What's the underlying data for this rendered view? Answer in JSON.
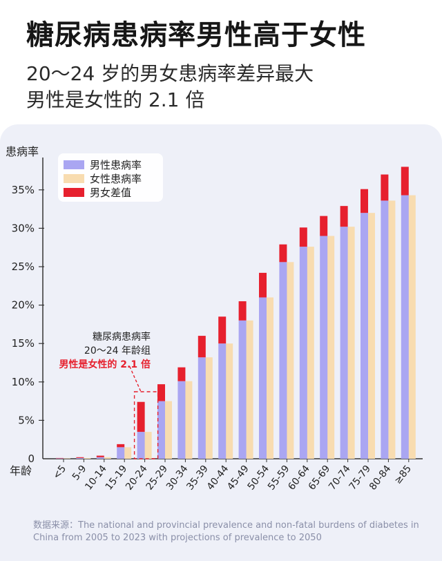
{
  "header": {
    "title": "糖尿病患病率男性高于女性",
    "subtitle_line1": "20～24 岁的男女患病率差异最大",
    "subtitle_line2": "男性是女性的 2.1 倍"
  },
  "colors": {
    "male": "#aaa6f2",
    "female": "#f8dcb0",
    "diff": "#e6202e",
    "panel": "#eef0f8",
    "annotation_red": "#e6202e"
  },
  "chart_data": {
    "type": "bar",
    "ylabel": "患病率",
    "xlabel": "年龄",
    "ylim": [
      0,
      40
    ],
    "yticks": [
      "0",
      "5%",
      "10%",
      "15%",
      "20%",
      "25%",
      "30%",
      "35%"
    ],
    "categories": [
      "<5",
      "5-9",
      "10-14",
      "15-19",
      "20-24",
      "25-29",
      "30-34",
      "35-39",
      "40-44",
      "45-49",
      "50-54",
      "55-59",
      "60-64",
      "65-69",
      "70-74",
      "75-79",
      "80-84",
      "≥85"
    ],
    "series": [
      {
        "name": "男性患病率",
        "values": [
          0.1,
          0.2,
          0.4,
          1.9,
          7.4,
          9.7,
          11.9,
          16.0,
          18.5,
          20.5,
          24.2,
          27.9,
          30.1,
          31.6,
          32.9,
          35.1,
          37.0,
          38.0
        ]
      },
      {
        "name": "女性患病率",
        "values": [
          0.05,
          0.1,
          0.2,
          1.5,
          3.5,
          7.5,
          10.1,
          13.2,
          15.0,
          18.0,
          21.0,
          25.6,
          27.6,
          29.0,
          30.2,
          32.0,
          33.6,
          34.3
        ]
      },
      {
        "name": "男女差值",
        "values": [
          0.05,
          0.1,
          0.2,
          0.4,
          3.9,
          2.2,
          1.8,
          2.8,
          3.5,
          2.5,
          3.2,
          2.3,
          2.5,
          2.6,
          2.7,
          3.1,
          3.4,
          3.7
        ]
      }
    ],
    "legend": [
      "男性患病率",
      "女性患病率",
      "男女差值"
    ],
    "legend_position": "top-left",
    "highlight_category": "20-24",
    "annotation": {
      "line1": "糖尿病患病率",
      "line2": "20～24 年龄组",
      "line3": "男性是女性的 2.1 倍"
    }
  },
  "source": "数据来源：The national and provincial prevalence and non-fatal burdens of diabetes in China from 2005 to 2023 with projections of prevalence to 2050"
}
